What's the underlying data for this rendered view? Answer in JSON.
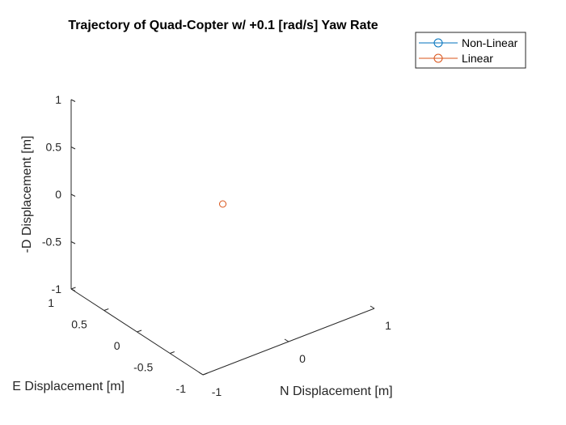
{
  "chart_data": {
    "type": "scatter",
    "projection": "3d",
    "title": "Trajectory of Quad-Copter w/ +0.1 [rad/s] Yaw Rate",
    "xlabel": "N Displacement [m]",
    "ylabel": "E Displacement [m]",
    "zlabel": "-D Displacement [m]",
    "xlim": [
      -1,
      1
    ],
    "ylim": [
      -1,
      1
    ],
    "zlim": [
      -1,
      1
    ],
    "xticks": [
      {
        "value": -1,
        "label": "-1"
      },
      {
        "value": 0,
        "label": "0"
      },
      {
        "value": 1,
        "label": "1"
      }
    ],
    "yticks": [
      {
        "value": -1,
        "label": "-1"
      },
      {
        "value": -0.5,
        "label": "-0.5"
      },
      {
        "value": 0,
        "label": "0"
      },
      {
        "value": 0.5,
        "label": "0.5"
      },
      {
        "value": 1,
        "label": "1"
      }
    ],
    "zticks": [
      {
        "value": -1,
        "label": "-1"
      },
      {
        "value": -0.5,
        "label": "-0.5"
      },
      {
        "value": 0,
        "label": "0"
      },
      {
        "value": 0.5,
        "label": "0.5"
      },
      {
        "value": 1,
        "label": "1"
      }
    ],
    "grid": false,
    "legend_position": "top-right",
    "series": [
      {
        "name": "Non-Linear",
        "color": "#0072BD",
        "marker": "circle",
        "points": []
      },
      {
        "name": "Linear",
        "color": "#D95319",
        "marker": "circle",
        "points": [
          {
            "x": 0,
            "y": 0,
            "z": 0
          }
        ]
      }
    ]
  }
}
